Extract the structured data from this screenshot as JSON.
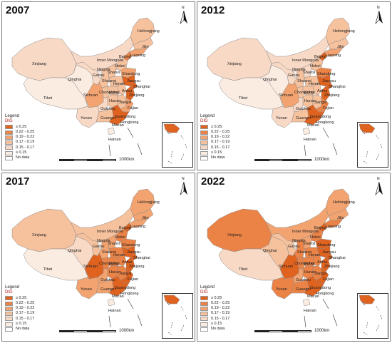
{
  "panels": [
    {
      "year": "2007",
      "shades": {
        "north": 0,
        "xinjiang": 1,
        "tibet": 0,
        "qinghai": 0,
        "gansu": 1,
        "inner": 1,
        "heilongjiang": 2,
        "jilin": 2,
        "liaoning": 3,
        "beijing": 4,
        "shandong": 3,
        "jiangsu": 5,
        "shanghai": 5,
        "zhejiang": 5,
        "fujian": 3,
        "guangdong": 5,
        "sichuan": 3,
        "chongqing": 2,
        "yunnan": 1,
        "guizhou": 1,
        "guangxi": 2,
        "hunan": 2,
        "hubei": 2,
        "henan": 2,
        "shaanxi": 2,
        "shanxi": 2,
        "hebei": 2,
        "jiangxi": 2,
        "anhui": 2
      }
    },
    {
      "year": "2012",
      "shades": {
        "north": 0,
        "xinjiang": 1,
        "tibet": 0,
        "qinghai": 0,
        "gansu": 1,
        "inner": 1,
        "heilongjiang": 2,
        "jilin": 2,
        "liaoning": 3,
        "beijing": 5,
        "shandong": 4,
        "jiangsu": 5,
        "shanghai": 5,
        "zhejiang": 5,
        "fujian": 4,
        "guangdong": 5,
        "sichuan": 3,
        "chongqing": 2,
        "yunnan": 1,
        "guizhou": 1,
        "guangxi": 2,
        "hunan": 2,
        "hubei": 2,
        "henan": 2,
        "shaanxi": 2,
        "shanxi": 1,
        "hebei": 2,
        "jiangxi": 2,
        "anhui": 2
      }
    },
    {
      "year": "2017",
      "shades": {
        "north": 0,
        "xinjiang": 2,
        "tibet": 0,
        "qinghai": 1,
        "gansu": 2,
        "inner": 2,
        "heilongjiang": 3,
        "jilin": 3,
        "liaoning": 3,
        "beijing": 5,
        "shandong": 4,
        "jiangsu": 5,
        "shanghai": 5,
        "zhejiang": 5,
        "fujian": 5,
        "guangdong": 5,
        "sichuan": 5,
        "chongqing": 4,
        "yunnan": 3,
        "guizhou": 3,
        "guangxi": 3,
        "hunan": 4,
        "hubei": 4,
        "henan": 4,
        "shaanxi": 3,
        "shanxi": 3,
        "hebei": 4,
        "jiangxi": 4,
        "anhui": 4
      }
    },
    {
      "year": "2022",
      "shades": {
        "north": 0,
        "xinjiang": 4,
        "tibet": 1,
        "qinghai": 2,
        "gansu": 2,
        "inner": 3,
        "heilongjiang": 3,
        "jilin": 3,
        "liaoning": 4,
        "beijing": 5,
        "shandong": 5,
        "jiangsu": 5,
        "shanghai": 5,
        "zhejiang": 5,
        "fujian": 5,
        "guangdong": 5,
        "sichuan": 5,
        "chongqing": 4,
        "yunnan": 4,
        "guizhou": 3,
        "guangxi": 4,
        "hunan": 4,
        "hubei": 4,
        "henan": 4,
        "shaanxi": 4,
        "shanxi": 3,
        "hebei": 4,
        "jiangxi": 4,
        "anhui": 4
      }
    }
  ],
  "legend": {
    "title": "Legend",
    "variable": "DIG",
    "classes": [
      {
        "label": "≥ 0.25",
        "color": "#e0621f"
      },
      {
        "label": "0.22 - 0.25",
        "color": "#ec8346"
      },
      {
        "label": "0.19 - 0.22",
        "color": "#f3a36f"
      },
      {
        "label": "0.17 - 0.19",
        "color": "#f6c19d"
      },
      {
        "label": "0.15 - 0.17",
        "color": "#f8d9c5"
      },
      {
        "label": "≤ 0.15",
        "color": "#fbece2"
      },
      {
        "label": "No data",
        "color": "#ffffff"
      }
    ]
  },
  "scale_label": "1000km",
  "north_label": "N",
  "province_labels": {
    "xinjiang": "Xinjiang",
    "tibet": "Tibet",
    "qinghai": "Qinghai",
    "gansu": "Gansu",
    "inner": "Inner Mongolia",
    "heilongjiang": "Heilongjiang",
    "jilin": "Jilin",
    "liaoning": "Liaoning",
    "beijing": "Beijing",
    "hebei": "Hebei",
    "shanxi": "Shanxi",
    "shandong": "Shandong",
    "ningxia": "Ningxia",
    "shaanxi": "Shaanxi",
    "henan": "Henan",
    "jiangsu": "Jiangsu",
    "shanghai": "Shanghai",
    "sichuan": "Sichuan",
    "chongqing": "Chongqing",
    "hubei": "Hubei",
    "anhui": "Anhui",
    "zhejiang": "Zhejiang",
    "hunan": "Hunan",
    "jiangxi": "Jiangxi",
    "fujian": "Fujian",
    "guizhou": "Guizhou",
    "yunnan": "Yunan",
    "guangxi": "Guangxi",
    "guangdong": "Guangdong",
    "hongkong": "Hongkong",
    "macao": "Macao",
    "hainan": "Hainan"
  }
}
